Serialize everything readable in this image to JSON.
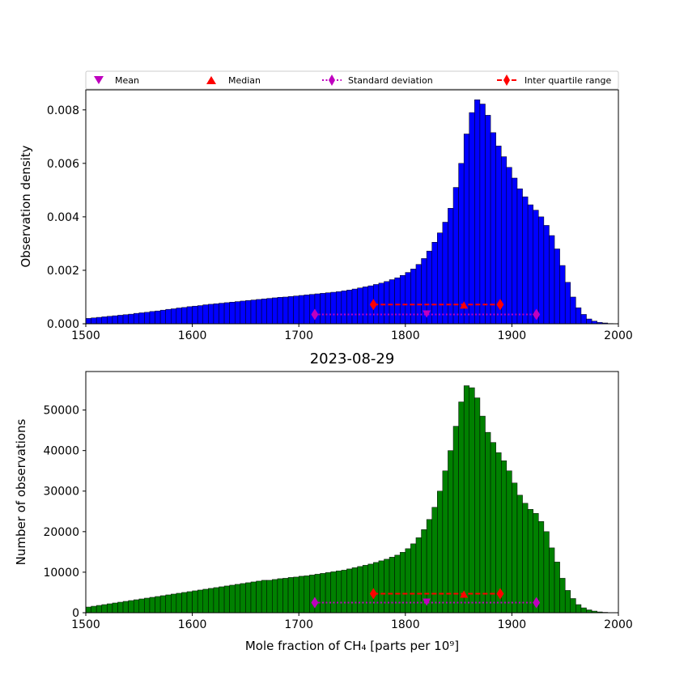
{
  "legend": {
    "placement": "top, above upper plot",
    "items": [
      {
        "label": "Mean",
        "marker": "down-triangle",
        "color": "#bf00bf"
      },
      {
        "label": "Median",
        "marker": "up-triangle",
        "color": "#ff0000"
      },
      {
        "label": "Standard deviation",
        "marker": "diamond-dotted",
        "color": "#bf00bf"
      },
      {
        "label": "Inter quartile range",
        "marker": "diamond-dashed",
        "color": "#ff0000"
      }
    ]
  },
  "chart_data": [
    {
      "type": "bar",
      "title": "",
      "xlabel": "",
      "ylabel": "Observation density",
      "xlim": [
        1500,
        2000
      ],
      "ylim": [
        0,
        0.00875
      ],
      "xticks": [
        "1500",
        "1600",
        "1700",
        "1800",
        "1900",
        "2000"
      ],
      "yticks": [
        "0.000",
        "0.002",
        "0.004",
        "0.006",
        "0.008"
      ],
      "ytick_values": [
        0,
        0.002,
        0.004,
        0.006,
        0.008
      ],
      "bar_color": "#0000ff",
      "bin_width": 5,
      "bin_starts": [
        1500,
        1505,
        1510,
        1515,
        1520,
        1525,
        1530,
        1535,
        1540,
        1545,
        1550,
        1555,
        1560,
        1565,
        1570,
        1575,
        1580,
        1585,
        1590,
        1595,
        1600,
        1605,
        1610,
        1615,
        1620,
        1625,
        1630,
        1635,
        1640,
        1645,
        1650,
        1655,
        1660,
        1665,
        1670,
        1675,
        1680,
        1685,
        1690,
        1695,
        1700,
        1705,
        1710,
        1715,
        1720,
        1725,
        1730,
        1735,
        1740,
        1745,
        1750,
        1755,
        1760,
        1765,
        1770,
        1775,
        1780,
        1785,
        1790,
        1795,
        1800,
        1805,
        1810,
        1815,
        1820,
        1825,
        1830,
        1835,
        1840,
        1845,
        1850,
        1855,
        1860,
        1865,
        1870,
        1875,
        1880,
        1885,
        1890,
        1895,
        1900,
        1905,
        1910,
        1915,
        1920,
        1925,
        1930,
        1935,
        1940,
        1945,
        1950,
        1955,
        1960,
        1965,
        1970,
        1975,
        1980,
        1985,
        1990,
        1995
      ],
      "values": [
        0.0002,
        0.00022,
        0.00024,
        0.00026,
        0.00028,
        0.0003,
        0.00032,
        0.00034,
        0.00036,
        0.00039,
        0.00041,
        0.00043,
        0.00046,
        0.00048,
        0.00051,
        0.00054,
        0.00056,
        0.00059,
        0.00061,
        0.00064,
        0.00066,
        0.00068,
        0.00071,
        0.00073,
        0.00075,
        0.00077,
        0.00079,
        0.00081,
        0.00083,
        0.00085,
        0.00087,
        0.00089,
        0.00091,
        0.00093,
        0.00095,
        0.00097,
        0.00099,
        0.001,
        0.00102,
        0.00104,
        0.00106,
        0.00108,
        0.0011,
        0.00112,
        0.00114,
        0.00116,
        0.00118,
        0.0012,
        0.00123,
        0.00126,
        0.0013,
        0.00134,
        0.00138,
        0.00142,
        0.00147,
        0.00152,
        0.00158,
        0.00165,
        0.00172,
        0.00181,
        0.00192,
        0.00205,
        0.00222,
        0.00244,
        0.00272,
        0.00305,
        0.0034,
        0.0038,
        0.00432,
        0.0051,
        0.006,
        0.0071,
        0.0079,
        0.00838,
        0.00822,
        0.0078,
        0.00715,
        0.00665,
        0.00625,
        0.00585,
        0.00545,
        0.00505,
        0.00475,
        0.00445,
        0.00425,
        0.004,
        0.00368,
        0.0033,
        0.0028,
        0.00218,
        0.00155,
        0.001,
        0.0006,
        0.00035,
        0.00018,
        0.0001,
        5e-05,
        3e-05,
        1e-05,
        0.0
      ],
      "stats": {
        "mean": {
          "x": 1820,
          "y": 0.00035,
          "color": "#bf00bf"
        },
        "median": {
          "x": 1855,
          "y": 0.00072,
          "color": "#ff0000"
        },
        "std_range": {
          "x": [
            1715,
            1923
          ],
          "y": 0.00035,
          "color": "#bf00bf"
        },
        "iqr_range": {
          "x": [
            1770,
            1889
          ],
          "y": 0.00072,
          "color": "#ff0000"
        }
      }
    },
    {
      "type": "bar",
      "title": "2023-08-29",
      "xlabel": "Mole fraction of CH₄ [parts per 10⁹]",
      "ylabel": "Number of observations",
      "xlim": [
        1500,
        2000
      ],
      "ylim": [
        0,
        59500
      ],
      "xticks": [
        "1500",
        "1600",
        "1700",
        "1800",
        "1900",
        "2000"
      ],
      "yticks": [
        "0",
        "10000",
        "20000",
        "30000",
        "40000",
        "50000"
      ],
      "ytick_values": [
        0,
        10000,
        20000,
        30000,
        40000,
        50000
      ],
      "bar_color": "#008000",
      "bin_width": 5,
      "bin_starts": [
        1500,
        1505,
        1510,
        1515,
        1520,
        1525,
        1530,
        1535,
        1540,
        1545,
        1550,
        1555,
        1560,
        1565,
        1570,
        1575,
        1580,
        1585,
        1590,
        1595,
        1600,
        1605,
        1610,
        1615,
        1620,
        1625,
        1630,
        1635,
        1640,
        1645,
        1650,
        1655,
        1660,
        1665,
        1670,
        1675,
        1680,
        1685,
        1690,
        1695,
        1700,
        1705,
        1710,
        1715,
        1720,
        1725,
        1730,
        1735,
        1740,
        1745,
        1750,
        1755,
        1760,
        1765,
        1770,
        1775,
        1780,
        1785,
        1790,
        1795,
        1800,
        1805,
        1810,
        1815,
        1820,
        1825,
        1830,
        1835,
        1840,
        1845,
        1850,
        1855,
        1860,
        1865,
        1870,
        1875,
        1880,
        1885,
        1890,
        1895,
        1900,
        1905,
        1910,
        1915,
        1920,
        1925,
        1930,
        1935,
        1940,
        1945,
        1950,
        1955,
        1960,
        1965,
        1970,
        1975,
        1980,
        1985,
        1990,
        1995
      ],
      "values": [
        1400,
        1600,
        1800,
        2000,
        2200,
        2400,
        2600,
        2800,
        3000,
        3200,
        3400,
        3600,
        3800,
        4000,
        4200,
        4400,
        4600,
        4800,
        5000,
        5200,
        5400,
        5600,
        5800,
        6000,
        6200,
        6400,
        6600,
        6800,
        7000,
        7200,
        7400,
        7600,
        7800,
        8000,
        8000,
        8200,
        8400,
        8500,
        8700,
        8800,
        9000,
        9100,
        9300,
        9500,
        9700,
        9900,
        10100,
        10300,
        10500,
        10800,
        11100,
        11400,
        11700,
        12000,
        12400,
        12800,
        13200,
        13700,
        14200,
        14900,
        15800,
        17000,
        18500,
        20500,
        23000,
        26000,
        30000,
        35000,
        40000,
        46000,
        52000,
        56000,
        55500,
        53000,
        48500,
        44500,
        42000,
        39500,
        37500,
        35000,
        32000,
        29000,
        27000,
        25500,
        24500,
        22500,
        20000,
        16000,
        12500,
        8500,
        5500,
        3500,
        2000,
        1200,
        700,
        400,
        200,
        100,
        50,
        0
      ],
      "stats": {
        "mean": {
          "x": 1820,
          "y": 2500,
          "color": "#bf00bf"
        },
        "median": {
          "x": 1855,
          "y": 4700,
          "color": "#ff0000"
        },
        "std_range": {
          "x": [
            1715,
            1923
          ],
          "y": 2500,
          "color": "#bf00bf"
        },
        "iqr_range": {
          "x": [
            1770,
            1889
          ],
          "y": 4700,
          "color": "#ff0000"
        }
      }
    }
  ]
}
